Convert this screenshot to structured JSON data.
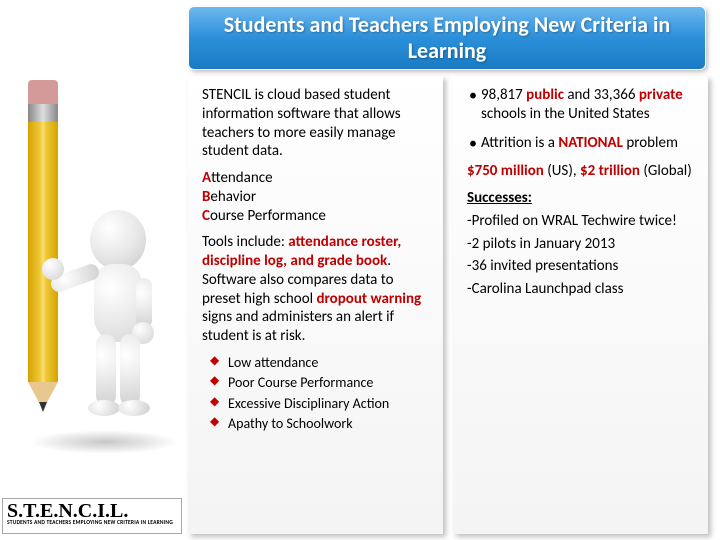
{
  "title": "Students and Teachers Employing New Criteria in Learning",
  "left": {
    "intro": "STENCIL is cloud based student information software that allows teachers to more easily manage student data.",
    "abc": {
      "a": "A",
      "a_rest": "ttendance",
      "b": "B",
      "b_rest": "ehavior",
      "c": "C",
      "c_rest": "ourse Performance"
    },
    "tools_pre": "Tools include: ",
    "tools_red1": "attendance roster, discipline log, and grade book",
    "tools_mid": ". Software also compares data to preset high school ",
    "tools_red2": "dropout warning",
    "tools_post": " signs and administers an alert if student is at risk.",
    "bullets": [
      "Low attendance",
      "Poor Course Performance",
      "Excessive Disciplinary Action",
      "Apathy to Schoolwork"
    ]
  },
  "right": {
    "b1": {
      "n1": "98,817",
      "w1": "public",
      "mid": " and ",
      "n2": "33,366",
      "w2": "private",
      "post": " schools in the United States"
    },
    "b2": {
      "pre": "Attrition is a ",
      "w": "NATIONAL",
      "post": " problem"
    },
    "money": {
      "us": "$750 million",
      "us_post": " (US), ",
      "gl": "$2 trillion",
      "gl_post": " (Global)"
    },
    "succ_label": "Successes:",
    "succ": [
      "-Profiled on WRAL Techwire twice!",
      "-2 pilots in January 2013",
      "-36 invited presentations",
      "-Carolina Launchpad class"
    ]
  },
  "logo": {
    "main": "S.T.E.N.C.I.L.",
    "sub": "STUDENTS AND TEACHERS EMPLOYING NEW CRITERIA IN LEARNING"
  },
  "colors": {
    "title_bg_top": "#6db8f0",
    "title_bg_bot": "#1a7bc4",
    "red": "#c00000"
  }
}
